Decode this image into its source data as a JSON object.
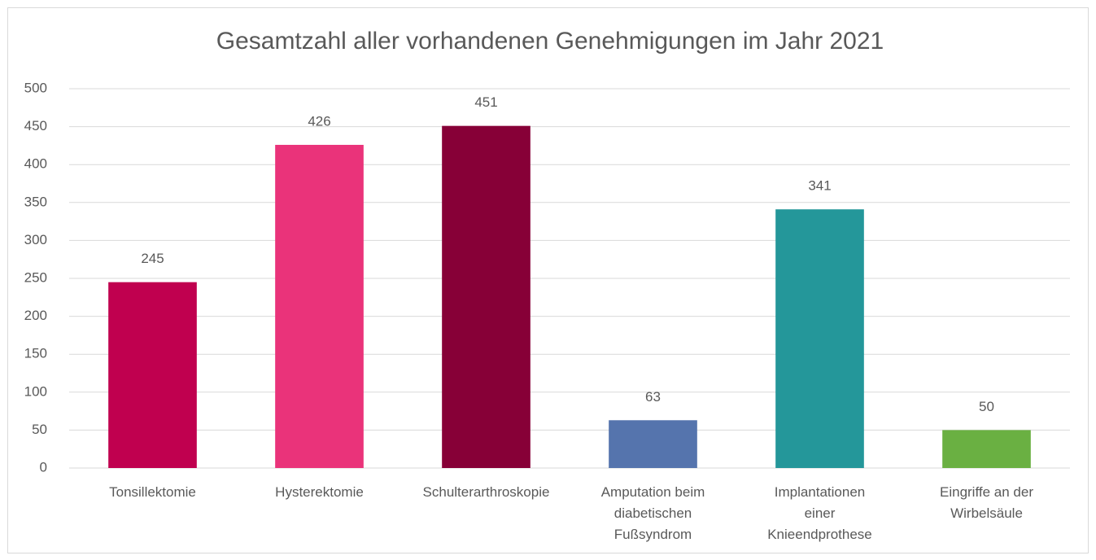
{
  "chart_data": {
    "type": "bar",
    "title": "Gesamtzahl aller vorhandenen Genehmigungen im Jahr 2021",
    "categories": [
      "Tonsillektomie",
      "Hysterektomie",
      "Schulterarthroskopie",
      "Amputation beim diabetischen Fußsyndrom",
      "Implantationen einer Knieendprothese",
      "Eingriffe an der Wirbelsäule"
    ],
    "values": [
      245,
      426,
      451,
      63,
      341,
      50
    ],
    "colors": [
      "#c0004f",
      "#ea337a",
      "#870037",
      "#5574ad",
      "#24979a",
      "#6ab042"
    ],
    "ylim": [
      0,
      500
    ],
    "yticks": [
      0,
      50,
      100,
      150,
      200,
      250,
      300,
      350,
      400,
      450,
      500
    ],
    "grid": true
  }
}
